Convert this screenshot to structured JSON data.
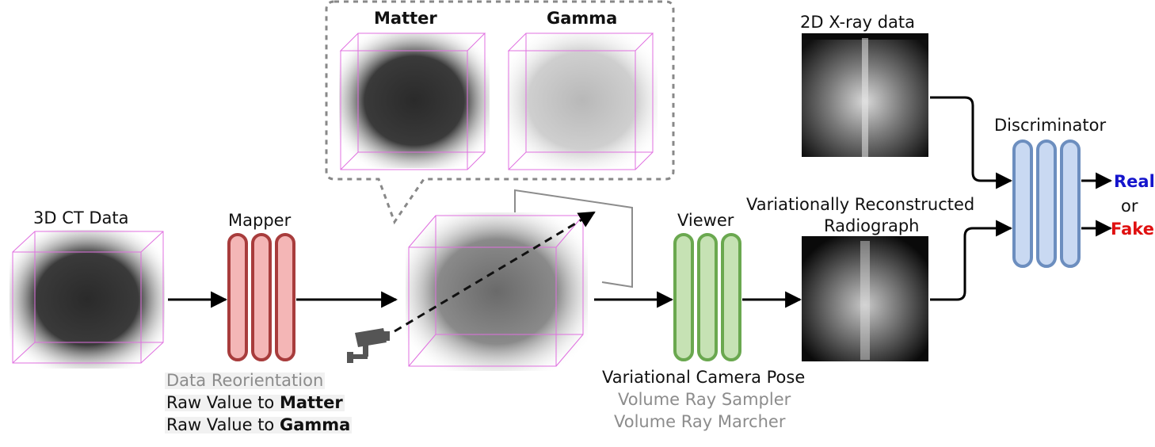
{
  "labels": {
    "ct_data": "3D CT Data",
    "mapper": "Mapper",
    "matter": "Matter",
    "gamma": "Gamma",
    "viewer": "Viewer",
    "xray_data": "2D X-ray data",
    "discriminator": "Discriminator",
    "reconstructed_line1": "Variationally Reconstructed",
    "reconstructed_line2": "Radiograph",
    "real": "Real",
    "or": "or",
    "fake": "Fake"
  },
  "mapper_steps": {
    "reorientation": "Data Reorientation",
    "matter_prefix": "Raw Value to ",
    "matter_bold": "Matter",
    "gamma_prefix": "Raw Value to ",
    "gamma_bold": "Gamma"
  },
  "viewer_steps": {
    "camera": "Variational Camera Pose",
    "sampler": "Volume Ray Sampler",
    "marcher": "Volume Ray Marcher"
  },
  "colors": {
    "mapper_fill": "#f4b6b6",
    "mapper_stroke": "#a83c3c",
    "viewer_fill": "#c6e2b4",
    "viewer_stroke": "#6aa84f",
    "disc_fill": "#c9d9f2",
    "disc_stroke": "#6c8ebf",
    "real": "#1515cc",
    "fake": "#e01010",
    "cube_edge": "#e070e0"
  },
  "icons": {
    "camera": "security-camera-icon"
  }
}
